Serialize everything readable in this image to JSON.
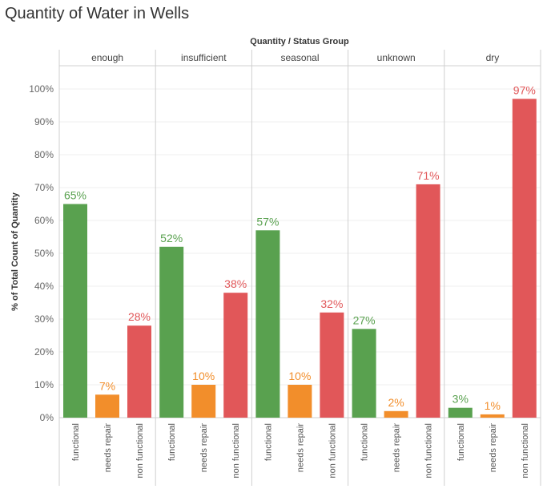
{
  "title": "Quantity of Water in Wells",
  "chart_data": {
    "type": "bar",
    "title": "Quantity of Water in Wells",
    "header_label": "Quantity / Status Group",
    "ylabel": "% of Total Count of Quantity",
    "ylim": [
      0,
      100
    ],
    "yticks": [
      0,
      10,
      20,
      30,
      40,
      50,
      60,
      70,
      80,
      90,
      100
    ],
    "ytick_labels": [
      "0%",
      "10%",
      "20%",
      "30%",
      "40%",
      "50%",
      "60%",
      "70%",
      "80%",
      "90%",
      "100%"
    ],
    "panels": [
      "enough",
      "insufficient",
      "seasonal",
      "unknown",
      "dry"
    ],
    "categories": [
      "functional",
      "needs repair",
      "non functional"
    ],
    "colors": [
      "#59a14f",
      "#f28e2b",
      "#e15759"
    ],
    "series": [
      {
        "panel": "enough",
        "values": [
          65,
          7,
          28
        ],
        "labels": [
          "65%",
          "7%",
          "28%"
        ]
      },
      {
        "panel": "insufficient",
        "values": [
          52,
          10,
          38
        ],
        "labels": [
          "52%",
          "10%",
          "38%"
        ]
      },
      {
        "panel": "seasonal",
        "values": [
          57,
          10,
          32
        ],
        "labels": [
          "57%",
          "10%",
          "32%"
        ]
      },
      {
        "panel": "unknown",
        "values": [
          27,
          2,
          71
        ],
        "labels": [
          "27%",
          "2%",
          "71%"
        ]
      },
      {
        "panel": "dry",
        "values": [
          3,
          1,
          97
        ],
        "labels": [
          "3%",
          "1%",
          "97%"
        ]
      }
    ],
    "grid": true,
    "legend": "none"
  }
}
